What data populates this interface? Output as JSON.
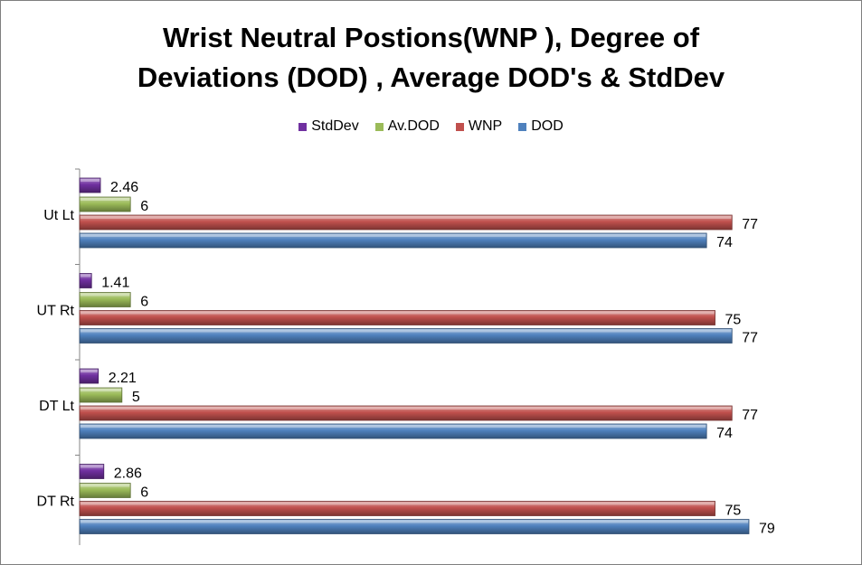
{
  "chart_data": {
    "type": "bar",
    "orientation": "horizontal",
    "title_lines": [
      "Wrist Neutral Postions(WNP ), Degree of",
      "Deviations (DOD) , Average DOD's & StdDev"
    ],
    "categories": [
      "Ut Lt",
      "UT Rt",
      "DT Lt",
      "DT Rt"
    ],
    "series": [
      {
        "name": "StdDev",
        "color": "#7030a0",
        "values": [
          2.46,
          1.41,
          2.21,
          2.86
        ],
        "labels": [
          "2.46",
          "1.41",
          "2.21",
          "2.86"
        ]
      },
      {
        "name": "Av.DOD",
        "color": "#9bbb59",
        "values": [
          6,
          6,
          5,
          6
        ],
        "labels": [
          "6",
          "6",
          "5",
          "6"
        ]
      },
      {
        "name": "WNP",
        "color": "#c0504d",
        "values": [
          77,
          75,
          77,
          75
        ],
        "labels": [
          "77",
          "75",
          "77",
          "75"
        ]
      },
      {
        "name": "DOD",
        "color": "#4f81bd",
        "values": [
          74,
          77,
          74,
          79
        ],
        "labels": [
          "74",
          "77",
          "74",
          "79"
        ]
      }
    ],
    "legend_order": [
      "StdDev",
      "Av.DOD",
      "WNP",
      "DOD"
    ],
    "legend_position": "top",
    "grid": false,
    "xlim": [
      0,
      80
    ],
    "bar_style": "3d-bevel"
  }
}
